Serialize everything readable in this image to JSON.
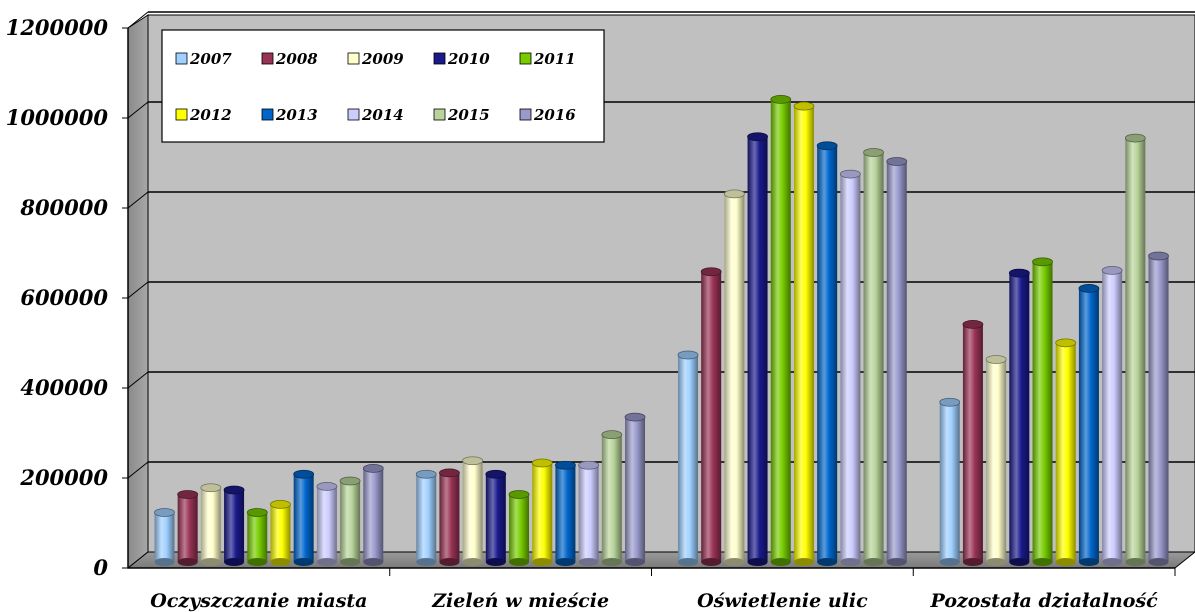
{
  "chart_data": {
    "type": "bar",
    "categories": [
      "Oczyszczanie miasta",
      "Zieleń w mieście",
      "Oświetlenie ulic",
      "Pozostała działalność"
    ],
    "series": [
      {
        "name": "2007",
        "color": "#9fd0ff",
        "values": [
          110000,
          195000,
          460000,
          355000
        ]
      },
      {
        "name": "2008",
        "color": "#993355",
        "values": [
          150000,
          198000,
          645000,
          528000
        ]
      },
      {
        "name": "2009",
        "color": "#ffffcc",
        "values": [
          165000,
          225000,
          818000,
          450000
        ]
      },
      {
        "name": "2010",
        "color": "#1a1a8c",
        "values": [
          160000,
          195000,
          945000,
          642000
        ]
      },
      {
        "name": "2011",
        "color": "#77cc00",
        "values": [
          110000,
          150000,
          1028000,
          667000
        ]
      },
      {
        "name": "2012",
        "color": "#ffff00",
        "values": [
          128000,
          220000,
          1013000,
          487000
        ]
      },
      {
        "name": "2013",
        "color": "#0066cc",
        "values": [
          195000,
          215000,
          925000,
          608000
        ]
      },
      {
        "name": "2014",
        "color": "#ccccff",
        "values": [
          168000,
          215000,
          862000,
          648000
        ]
      },
      {
        "name": "2015",
        "color": "#b8d49a",
        "values": [
          180000,
          283000,
          910000,
          942000
        ]
      },
      {
        "name": "2016",
        "color": "#9999cc",
        "values": [
          208000,
          322000,
          890000,
          680000
        ]
      }
    ],
    "yticks": [
      "0",
      "200000",
      "400000",
      "600000",
      "800000",
      "1000000",
      "1200000"
    ],
    "ylim": [
      0,
      1200000
    ],
    "grid": true,
    "legend": "top-left"
  }
}
